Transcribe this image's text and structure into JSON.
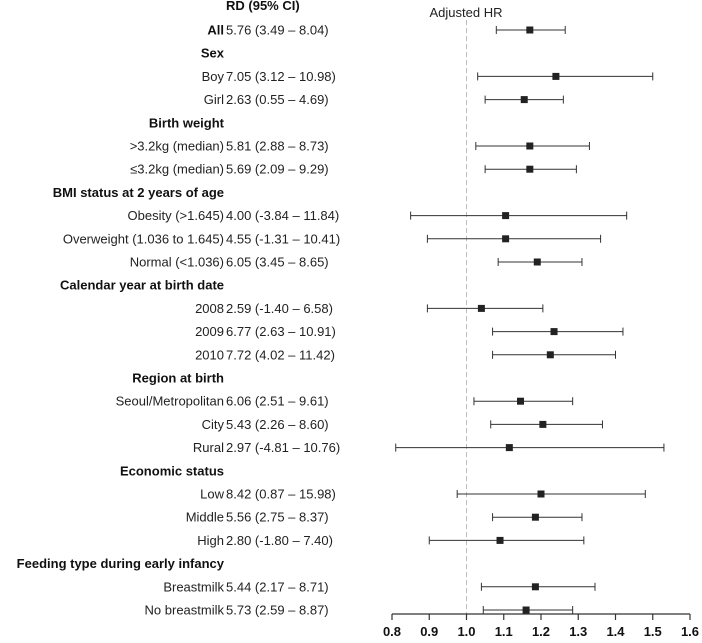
{
  "chart_data": {
    "type": "forest",
    "column_header": "RD (95% CI)",
    "reference_label": "Adjusted HR",
    "reference_value": 1.0,
    "xlim": [
      0.8,
      1.6
    ],
    "xticks": [
      "0.8",
      "0.9",
      "1.0",
      "1.1",
      "1.2",
      "1.3",
      "1.4",
      "1.5",
      "1.6"
    ],
    "rows": [
      {
        "label": "All",
        "header": true,
        "rd": "5.76 (3.49 – 8.04)",
        "hr": 1.17,
        "lo": 1.08,
        "hi": 1.265
      },
      {
        "label": "Sex",
        "header": true
      },
      {
        "label": "Boy",
        "rd": "7.05 (3.12 – 10.98)",
        "hr": 1.24,
        "lo": 1.03,
        "hi": 1.5
      },
      {
        "label": "Girl",
        "rd": "2.63 (0.55 – 4.69)",
        "hr": 1.155,
        "lo": 1.05,
        "hi": 1.26
      },
      {
        "label": "Birth weight",
        "header": true
      },
      {
        "label": ">3.2kg (median)",
        "rd": "5.81 (2.88 – 8.73)",
        "hr": 1.17,
        "lo": 1.025,
        "hi": 1.33
      },
      {
        "label": "≤3.2kg (median)",
        "rd": "5.69 (2.09 – 9.29)",
        "hr": 1.17,
        "lo": 1.05,
        "hi": 1.295
      },
      {
        "label": "BMI status at 2 years of age",
        "header": true
      },
      {
        "label": "Obesity (>1.645)",
        "rd": "4.00 (-3.84 – 11.84)",
        "hr": 1.105,
        "lo": 0.85,
        "hi": 1.43
      },
      {
        "label": "Overweight (1.036 to 1.645)",
        "rd": "4.55 (-1.31 – 10.41)",
        "hr": 1.105,
        "lo": 0.895,
        "hi": 1.36
      },
      {
        "label": "Normal (<1.036)",
        "rd": "6.05 (3.45 – 8.65)",
        "hr": 1.19,
        "lo": 1.085,
        "hi": 1.31
      },
      {
        "label": "Calendar year at birth date",
        "header": true
      },
      {
        "label": "2008",
        "rd": "2.59 (-1.40 – 6.58)",
        "hr": 1.04,
        "lo": 0.895,
        "hi": 1.205
      },
      {
        "label": "2009",
        "rd": "6.77 (2.63 – 10.91)",
        "hr": 1.235,
        "lo": 1.07,
        "hi": 1.42
      },
      {
        "label": "2010",
        "rd": "7.72 (4.02 – 11.42)",
        "hr": 1.225,
        "lo": 1.07,
        "hi": 1.4
      },
      {
        "label": "Region at birth",
        "header": true
      },
      {
        "label": "Seoul/Metropolitan",
        "rd": "6.06 (2.51 – 9.61)",
        "hr": 1.145,
        "lo": 1.02,
        "hi": 1.285
      },
      {
        "label": "City",
        "rd": "5.43 (2.26 – 8.60)",
        "hr": 1.205,
        "lo": 1.065,
        "hi": 1.365
      },
      {
        "label": "Rural",
        "rd": "2.97 (-4.81 – 10.76)",
        "hr": 1.115,
        "lo": 0.81,
        "hi": 1.53
      },
      {
        "label": "Economic status",
        "header": true
      },
      {
        "label": "Low",
        "rd": "8.42 (0.87 – 15.98)",
        "hr": 1.2,
        "lo": 0.975,
        "hi": 1.48
      },
      {
        "label": "Middle",
        "rd": "5.56 (2.75 – 8.37)",
        "hr": 1.185,
        "lo": 1.07,
        "hi": 1.31
      },
      {
        "label": "High",
        "rd": "2.80 (-1.80 – 7.40)",
        "hr": 1.09,
        "lo": 0.9,
        "hi": 1.315
      },
      {
        "label": "Feeding type during early infancy",
        "header": true
      },
      {
        "label": "Breastmilk",
        "rd": "5.44 (2.17 – 8.71)",
        "hr": 1.185,
        "lo": 1.04,
        "hi": 1.345
      },
      {
        "label": "No breastmilk",
        "rd": "5.73 (2.59 – 8.87)",
        "hr": 1.16,
        "lo": 1.045,
        "hi": 1.285
      }
    ]
  }
}
